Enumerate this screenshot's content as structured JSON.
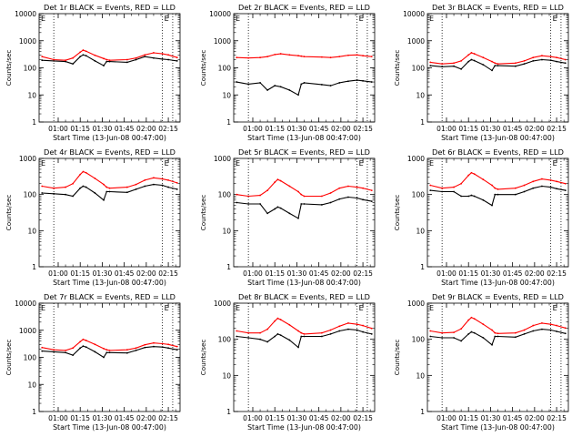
{
  "figure": {
    "x_ticks": [
      "01:00",
      "01:15",
      "01:30",
      "01:45",
      "02:00",
      "02:15"
    ],
    "xlabel": "Start Time (13-Jun-08 00:47:00)",
    "ylabel": "Counts/sec",
    "x_unit": "minutes after 00:47:00",
    "xlim": [
      0,
      96
    ],
    "ylim": [
      1,
      10000
    ],
    "yscale": "log",
    "colors": {
      "black_series": "#000000",
      "red_series": "#ff0000",
      "axes": "#000000"
    },
    "corner_markers": [
      "E",
      "E"
    ]
  },
  "chart_data": [
    {
      "type": "line",
      "title": "Det 1r BLACK = Events, RED = LLD",
      "y_ticks": [
        "1",
        "10",
        "100",
        "1000",
        "10000"
      ],
      "ylim": [
        1,
        10000
      ],
      "vlines_x": [
        10,
        84,
        91
      ],
      "x": [
        2,
        10,
        18,
        23,
        28,
        30,
        32,
        38,
        44,
        46,
        48,
        60,
        66,
        72,
        78,
        84,
        88,
        94
      ],
      "series": [
        {
          "name": "BLACK = Events",
          "color": "#000000",
          "values": [
            190,
            180,
            170,
            140,
            260,
            300,
            280,
            180,
            120,
            170,
            170,
            160,
            200,
            260,
            230,
            210,
            200,
            180
          ]
        },
        {
          "name": "RED = LLD",
          "color": "#ff0000",
          "values": [
            260,
            200,
            190,
            230,
            380,
            450,
            410,
            290,
            220,
            200,
            190,
            200,
            230,
            300,
            360,
            330,
            300,
            240
          ]
        }
      ]
    },
    {
      "type": "line",
      "title": "Det 2r BLACK = Events, RED = LLD",
      "y_ticks": [
        "1",
        "10",
        "100",
        "1000",
        "10000"
      ],
      "ylim": [
        1,
        10000
      ],
      "vlines_x": [
        10,
        84,
        91
      ],
      "x": [
        2,
        10,
        18,
        23,
        28,
        32,
        38,
        44,
        46,
        48,
        60,
        66,
        72,
        78,
        84,
        88,
        94
      ],
      "series": [
        {
          "name": "BLACK = Events",
          "color": "#000000",
          "values": [
            30,
            25,
            28,
            15,
            22,
            20,
            15,
            10,
            25,
            28,
            24,
            22,
            28,
            32,
            35,
            33,
            30
          ]
        },
        {
          "name": "RED = LLD",
          "color": "#ff0000",
          "values": [
            240,
            230,
            240,
            260,
            310,
            330,
            300,
            280,
            270,
            260,
            250,
            240,
            260,
            290,
            300,
            280,
            260
          ]
        }
      ]
    },
    {
      "type": "line",
      "title": "Det 3r BLACK = Events, RED = LLD",
      "y_ticks": [
        "1",
        "10",
        "100",
        "1000",
        "10000"
      ],
      "ylim": [
        1,
        10000
      ],
      "vlines_x": [
        10,
        84,
        91
      ],
      "x": [
        2,
        10,
        18,
        23,
        28,
        30,
        32,
        38,
        44,
        46,
        48,
        60,
        66,
        72,
        78,
        84,
        88,
        94
      ],
      "series": [
        {
          "name": "BLACK = Events",
          "color": "#000000",
          "values": [
            120,
            110,
            115,
            90,
            170,
            200,
            185,
            130,
            80,
            120,
            120,
            115,
            140,
            180,
            200,
            190,
            170,
            150
          ]
        },
        {
          "name": "RED = LLD",
          "color": "#ff0000",
          "values": [
            160,
            140,
            150,
            180,
            300,
            360,
            330,
            240,
            170,
            150,
            140,
            150,
            180,
            240,
            280,
            260,
            240,
            200
          ]
        }
      ]
    },
    {
      "type": "line",
      "title": "Det 4r BLACK = Events, RED = LLD",
      "y_ticks": [
        "1",
        "10",
        "100",
        "1000"
      ],
      "ylim": [
        1,
        1000
      ],
      "vlines_x": [
        10,
        84,
        91
      ],
      "x": [
        2,
        10,
        18,
        23,
        28,
        30,
        32,
        38,
        44,
        46,
        48,
        60,
        66,
        72,
        78,
        84,
        88,
        94
      ],
      "series": [
        {
          "name": "BLACK = Events",
          "color": "#000000",
          "values": [
            110,
            105,
            100,
            90,
            150,
            170,
            160,
            110,
            70,
            120,
            120,
            115,
            140,
            170,
            190,
            180,
            160,
            140
          ]
        },
        {
          "name": "RED = LLD",
          "color": "#ff0000",
          "values": [
            170,
            150,
            160,
            200,
            360,
            430,
            400,
            280,
            190,
            160,
            150,
            160,
            190,
            250,
            290,
            270,
            250,
            210
          ]
        }
      ]
    },
    {
      "type": "line",
      "title": "Det 5r BLACK = Events, RED = LLD",
      "y_ticks": [
        "1",
        "10",
        "100",
        "1000"
      ],
      "ylim": [
        1,
        1000
      ],
      "vlines_x": [
        10,
        84,
        91
      ],
      "x": [
        2,
        10,
        18,
        23,
        28,
        30,
        32,
        38,
        44,
        46,
        48,
        60,
        66,
        72,
        78,
        84,
        88,
        94
      ],
      "series": [
        {
          "name": "BLACK = Events",
          "color": "#000000",
          "values": [
            60,
            55,
            55,
            30,
            40,
            45,
            42,
            30,
            22,
            55,
            55,
            52,
            60,
            75,
            85,
            80,
            72,
            65
          ]
        },
        {
          "name": "RED = LLD",
          "color": "#ff0000",
          "values": [
            100,
            90,
            95,
            130,
            220,
            260,
            240,
            170,
            120,
            100,
            90,
            90,
            110,
            150,
            170,
            160,
            150,
            130
          ]
        }
      ]
    },
    {
      "type": "line",
      "title": "Det 6r BLACK = Events, RED = LLD",
      "y_ticks": [
        "1",
        "10",
        "100",
        "1000"
      ],
      "ylim": [
        1,
        1000
      ],
      "vlines_x": [
        10,
        84,
        91
      ],
      "x": [
        2,
        10,
        18,
        23,
        28,
        30,
        32,
        38,
        44,
        46,
        48,
        60,
        66,
        72,
        78,
        84,
        88,
        94
      ],
      "series": [
        {
          "name": "BLACK = Events",
          "color": "#000000",
          "values": [
            130,
            120,
            120,
            90,
            90,
            95,
            90,
            70,
            50,
            100,
            100,
            100,
            120,
            150,
            170,
            160,
            145,
            130
          ]
        },
        {
          "name": "RED = LLD",
          "color": "#ff0000",
          "values": [
            180,
            150,
            160,
            200,
            340,
            400,
            370,
            260,
            180,
            150,
            140,
            150,
            180,
            230,
            270,
            250,
            230,
            200
          ]
        }
      ]
    },
    {
      "type": "line",
      "title": "Det 7r BLACK = Events, RED = LLD",
      "y_ticks": [
        "1",
        "10",
        "100",
        "1000",
        "10000"
      ],
      "ylim": [
        1,
        10000
      ],
      "vlines_x": [
        10,
        84,
        91
      ],
      "x": [
        2,
        10,
        18,
        23,
        28,
        30,
        32,
        38,
        44,
        46,
        48,
        60,
        66,
        72,
        78,
        84,
        88,
        94
      ],
      "series": [
        {
          "name": "BLACK = Events",
          "color": "#000000",
          "values": [
            170,
            160,
            150,
            120,
            220,
            260,
            240,
            160,
            100,
            150,
            150,
            145,
            180,
            230,
            250,
            240,
            220,
            190
          ]
        },
        {
          "name": "RED = LLD",
          "color": "#ff0000",
          "values": [
            230,
            190,
            180,
            220,
            380,
            460,
            420,
            300,
            210,
            190,
            180,
            190,
            220,
            290,
            340,
            320,
            300,
            250
          ]
        }
      ]
    },
    {
      "type": "line",
      "title": "Det 8r BLACK = Events, RED = LLD",
      "y_ticks": [
        "1",
        "10",
        "100",
        "1000"
      ],
      "ylim": [
        1,
        1000
      ],
      "vlines_x": [
        10,
        84,
        91
      ],
      "x": [
        2,
        10,
        18,
        23,
        28,
        30,
        32,
        38,
        44,
        46,
        48,
        60,
        66,
        72,
        78,
        84,
        88,
        94
      ],
      "series": [
        {
          "name": "BLACK = Events",
          "color": "#000000",
          "values": [
            120,
            110,
            100,
            85,
            120,
            140,
            130,
            95,
            60,
            120,
            120,
            120,
            140,
            170,
            190,
            180,
            160,
            140
          ]
        },
        {
          "name": "RED = LLD",
          "color": "#ff0000",
          "values": [
            170,
            150,
            150,
            190,
            320,
            380,
            350,
            250,
            170,
            150,
            140,
            150,
            180,
            230,
            280,
            260,
            240,
            200
          ]
        }
      ]
    },
    {
      "type": "line",
      "title": "Det 9r BLACK = Events, RED = LLD",
      "y_ticks": [
        "1",
        "10",
        "100",
        "1000"
      ],
      "ylim": [
        1,
        1000
      ],
      "vlines_x": [
        10,
        84,
        91
      ],
      "x": [
        2,
        10,
        18,
        23,
        28,
        30,
        32,
        38,
        44,
        46,
        48,
        60,
        66,
        72,
        78,
        84,
        88,
        94
      ],
      "series": [
        {
          "name": "BLACK = Events",
          "color": "#000000",
          "values": [
            120,
            110,
            110,
            90,
            140,
            160,
            150,
            110,
            70,
            120,
            120,
            115,
            140,
            170,
            190,
            180,
            165,
            145
          ]
        },
        {
          "name": "RED = LLD",
          "color": "#ff0000",
          "values": [
            170,
            150,
            155,
            195,
            340,
            400,
            370,
            260,
            180,
            150,
            145,
            150,
            180,
            240,
            280,
            260,
            240,
            205
          ]
        }
      ]
    }
  ]
}
